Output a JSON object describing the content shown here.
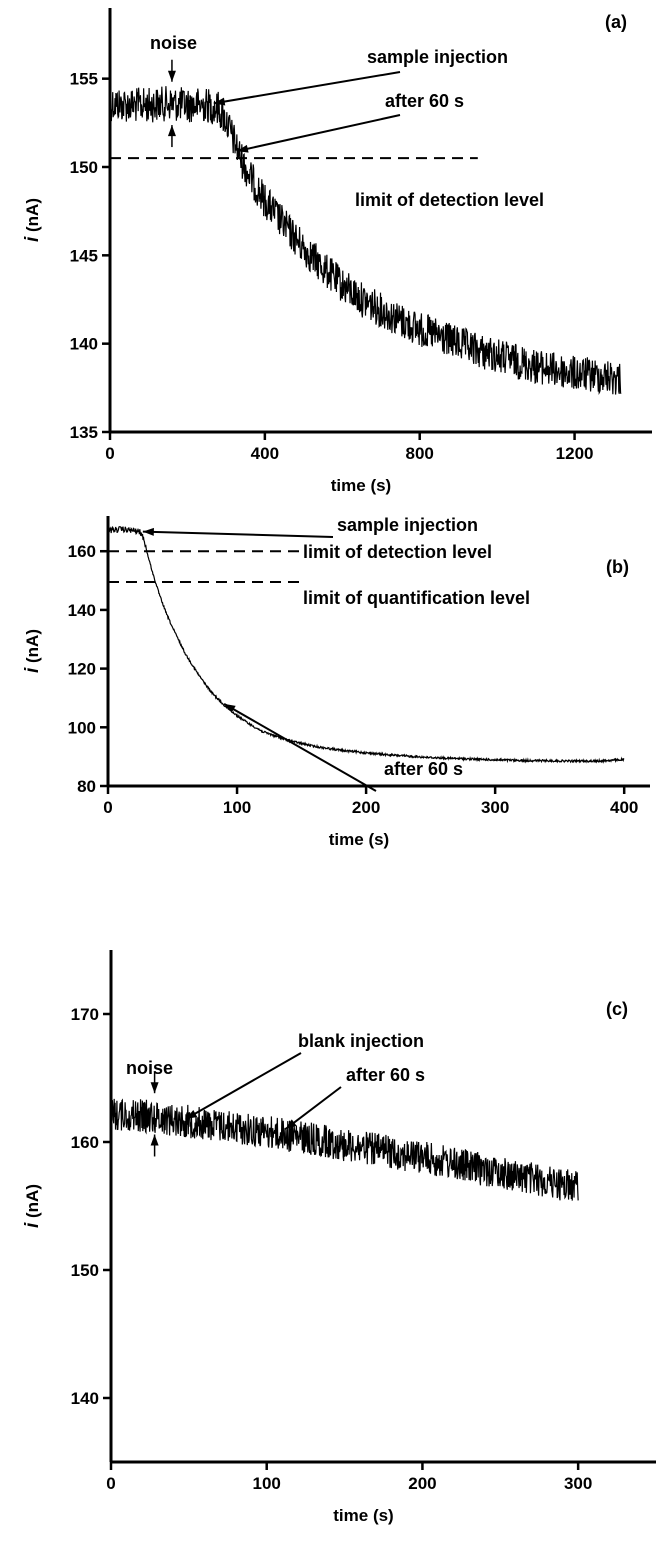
{
  "chart_data": [
    {
      "type": "line",
      "panel_label": "(a)",
      "xlabel": "time (s)",
      "ylabel_italic": "i",
      "ylabel_rest": " (nA)",
      "xlim": [
        0,
        1400
      ],
      "ylim": [
        135,
        159
      ],
      "xticks": [
        0,
        400,
        800,
        1200
      ],
      "xtick_labels": [
        "0",
        "400",
        "800",
        "1200"
      ],
      "yticks": [
        135,
        140,
        145,
        150,
        155
      ],
      "ytick_labels": [
        "135",
        "140",
        "145",
        "150",
        "155"
      ],
      "baseline_noise": 1.0,
      "series": [
        {
          "x": [
            0,
            50,
            100,
            150,
            200,
            250,
            280,
            300,
            320,
            340,
            360,
            380,
            400,
            450,
            500,
            550,
            600,
            650,
            700,
            750,
            800,
            850,
            900,
            950,
            1000,
            1050,
            1100,
            1150,
            1200,
            1250,
            1320
          ],
          "y": [
            153.6,
            153.5,
            153.5,
            153.6,
            153.5,
            153.5,
            153.3,
            152.6,
            151.5,
            150.4,
            149.5,
            148.8,
            148.1,
            146.7,
            145.4,
            144.3,
            143.3,
            142.5,
            141.9,
            141.3,
            140.8,
            140.4,
            140.0,
            139.6,
            139.3,
            139.0,
            138.7,
            138.5,
            138.3,
            138.2,
            138.0
          ]
        }
      ],
      "hlines": [
        {
          "y": 150.5,
          "x_start": 0,
          "x_end": 950,
          "label": "limit of detection level"
        }
      ],
      "annotations": [
        {
          "text": "noise",
          "type": "noise"
        },
        {
          "text": "sample injection",
          "x": 268,
          "y": 153.6
        },
        {
          "text": "after 60 s",
          "x": 328,
          "y": 150.9
        }
      ]
    },
    {
      "type": "line",
      "panel_label": "(b)",
      "xlabel": "time (s)",
      "ylabel_italic": "i",
      "ylabel_rest": " (nA)",
      "xlim": [
        0,
        420
      ],
      "ylim": [
        80,
        172
      ],
      "xticks": [
        0,
        100,
        200,
        300,
        400
      ],
      "xtick_labels": [
        "0",
        "100",
        "200",
        "300",
        "400"
      ],
      "yticks": [
        80,
        100,
        120,
        140,
        160
      ],
      "ytick_labels": [
        "80",
        "100",
        "120",
        "140",
        "160"
      ],
      "baseline_noise": 1.0,
      "series": [
        {
          "x": [
            0,
            10,
            20,
            25,
            28,
            30,
            35,
            40,
            45,
            50,
            60,
            70,
            80,
            90,
            100,
            110,
            120,
            140,
            160,
            180,
            200,
            220,
            250,
            280,
            300,
            320,
            340,
            360,
            380,
            400
          ],
          "y": [
            167,
            167.5,
            167,
            166.5,
            164,
            160,
            152,
            145,
            139,
            134,
            125,
            118,
            112,
            107.5,
            104,
            101,
            98.5,
            95.5,
            93.5,
            92.2,
            91.3,
            90.5,
            89.7,
            89.2,
            88.9,
            88.7,
            88.6,
            88.5,
            88.5,
            89
          ]
        }
      ],
      "hlines": [
        {
          "y": 160,
          "x_start": 0,
          "x_end": 150,
          "label": "limit of detection level"
        },
        {
          "y": 149.5,
          "x_start": 0,
          "x_end": 150,
          "label": "limit of quantification level"
        }
      ],
      "annotations": [
        {
          "text": "sample injection",
          "x": 27,
          "y": 166
        },
        {
          "text": "after 60 s",
          "x": 90,
          "y": 108
        }
      ]
    },
    {
      "type": "line",
      "panel_label": "(c)",
      "xlabel": "time (s)",
      "ylabel_italic": "i",
      "ylabel_rest": " (nA)",
      "xlim": [
        0,
        350
      ],
      "ylim": [
        135,
        175
      ],
      "xticks": [
        0,
        100,
        200,
        300
      ],
      "xtick_labels": [
        "0",
        "100",
        "200",
        "300"
      ],
      "yticks": [
        140,
        150,
        160,
        170
      ],
      "ytick_labels": [
        "140",
        "150",
        "160",
        "170"
      ],
      "baseline_noise": 1.3,
      "series": [
        {
          "x": [
            0,
            25,
            50,
            75,
            100,
            125,
            150,
            175,
            200,
            225,
            250,
            275,
            300
          ],
          "y": [
            162.2,
            162.0,
            161.6,
            161.2,
            160.8,
            160.3,
            159.8,
            159.3,
            158.8,
            158.2,
            157.6,
            157.0,
            156.5
          ]
        }
      ],
      "hlines": [],
      "annotations": [
        {
          "text": "noise",
          "type": "noise"
        },
        {
          "text": "blank injection",
          "x": 48,
          "y": 161.8
        },
        {
          "text": "after 60 s",
          "x": 112,
          "y": 161
        }
      ]
    }
  ]
}
